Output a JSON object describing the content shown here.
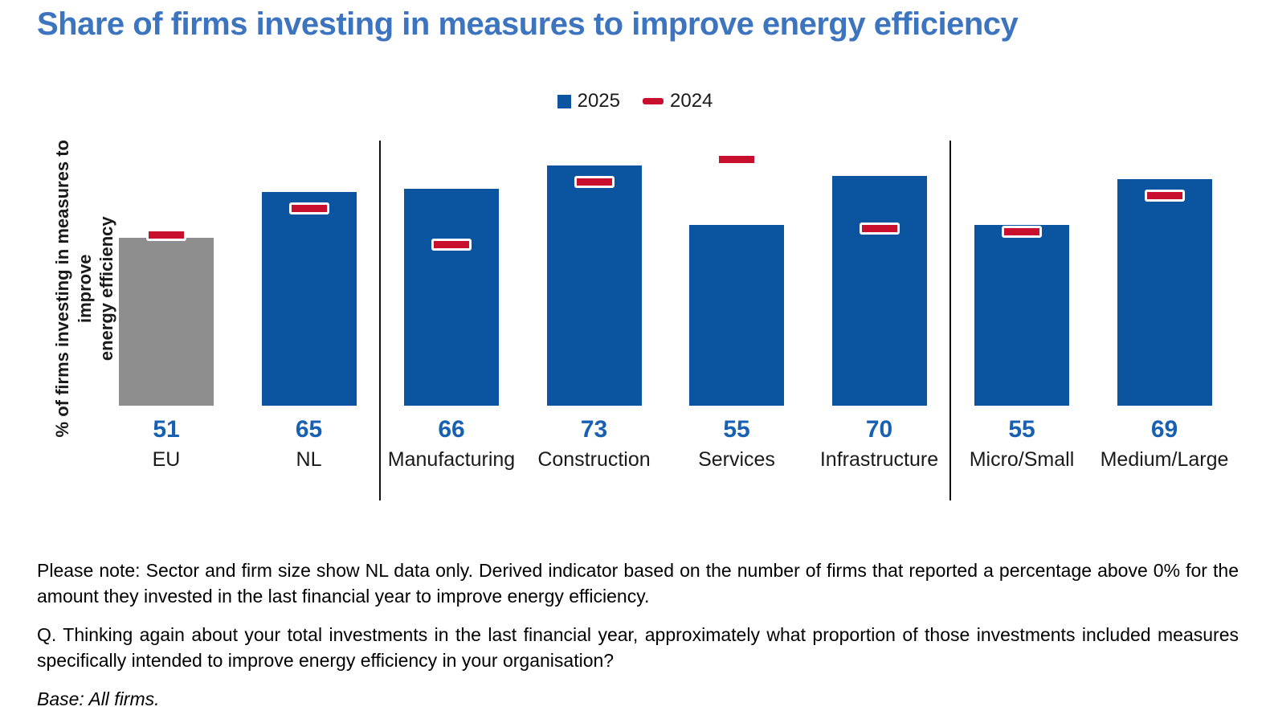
{
  "title": "Share of firms investing in measures to improve energy efficiency",
  "legend": {
    "items": [
      {
        "label": "2025",
        "swatch": "square-icon",
        "color": "#0B55A0"
      },
      {
        "label": "2024",
        "swatch": "dash-icon",
        "color": "#C8102E"
      }
    ]
  },
  "y_axis_label_lines": {
    "line1": "% of firms investing in measures to improve",
    "line2": "energy efficiency"
  },
  "chart_data": {
    "type": "bar",
    "title": "Share of firms investing in measures to improve energy efficiency",
    "xlabel": "",
    "ylabel": "% of firms investing in measures to improve energy efficiency",
    "ylim": [
      0,
      80
    ],
    "grid": false,
    "legend_position": "top-center",
    "categories": [
      "EU",
      "NL",
      "Manufacturing",
      "Construction",
      "Services",
      "Infrastructure",
      "Micro/Small",
      "Medium/Large"
    ],
    "groups": [
      {
        "name": "region",
        "categories": [
          "EU",
          "NL"
        ]
      },
      {
        "name": "sector",
        "categories": [
          "Manufacturing",
          "Construction",
          "Services",
          "Infrastructure"
        ]
      },
      {
        "name": "firm-size",
        "categories": [
          "Micro/Small",
          "Medium/Large"
        ]
      }
    ],
    "series": [
      {
        "name": "2025",
        "style": "bar",
        "values": [
          51,
          65,
          66,
          73,
          55,
          70,
          55,
          69
        ],
        "colors": [
          "#8E8E8E",
          "#0B55A0",
          "#0B55A0",
          "#0B55A0",
          "#0B55A0",
          "#0B55A0",
          "#0B55A0",
          "#0B55A0"
        ]
      },
      {
        "name": "2024",
        "style": "tick-marker",
        "values": [
          52,
          60,
          49,
          68,
          75,
          54,
          53,
          64
        ],
        "color": "#C8102E"
      }
    ],
    "data_labels": [
      51,
      65,
      66,
      73,
      55,
      70,
      55,
      69
    ]
  },
  "notes": {
    "please_note": "Please note: Sector and firm size show NL data only. Derived indicator based on the number of firms that reported a percentage above 0% for the amount they invested in the last financial year to improve energy efficiency.",
    "question": "Q. Thinking again about your total investments in the last financial year, approximately what proportion of those investments included measures specifically intended to improve energy efficiency in your organisation?",
    "base": "Base: All firms."
  },
  "colors": {
    "title_blue": "#3D74BF",
    "bar_blue": "#0B55A0",
    "bar_gray": "#8E8E8E",
    "marker_red": "#C8102E",
    "value_label_blue": "#1760B2",
    "divider_black": "#111111"
  }
}
